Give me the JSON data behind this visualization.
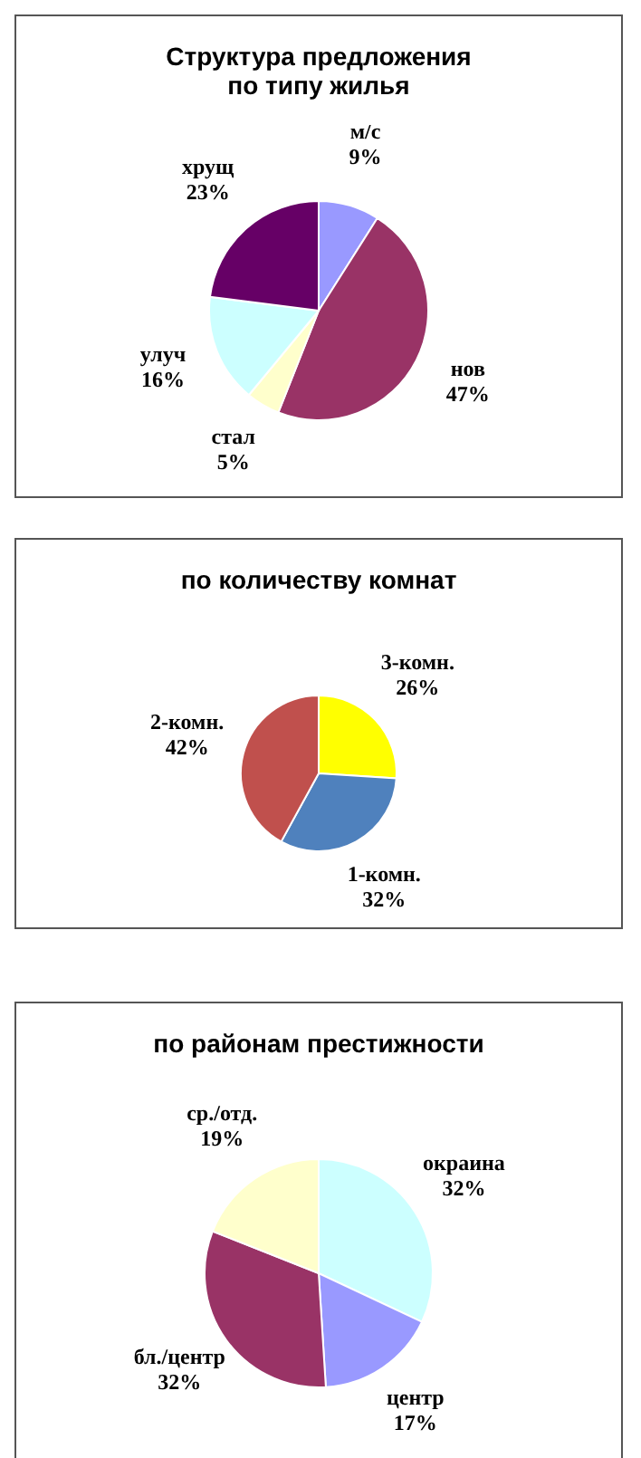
{
  "chart_data": [
    {
      "type": "pie",
      "title": "Структура  предложения\nпо типу жилья",
      "categories": [
        "м/с",
        "нов",
        "стал",
        "улуч",
        "хрущ"
      ],
      "values": [
        9,
        47,
        5,
        16,
        23
      ],
      "value_labels": [
        "9%",
        "47%",
        "5%",
        "16%",
        "23%"
      ],
      "colors": [
        "#9999ff",
        "#993366",
        "#ffffcc",
        "#ccffff",
        "#660066"
      ],
      "legend": false
    },
    {
      "type": "pie",
      "title": "по количеству  комнат",
      "categories": [
        "3-комн.",
        "1-комн.",
        "2-комн."
      ],
      "values": [
        26,
        32,
        42
      ],
      "value_labels": [
        "26%",
        "32%",
        "42%"
      ],
      "colors": [
        "#ffff00",
        "#4f81bd",
        "#c0504d"
      ],
      "legend": false
    },
    {
      "type": "pie",
      "title": "по районам престижности",
      "categories": [
        "окраина",
        "центр",
        "бл./центр",
        "ср./отд."
      ],
      "values": [
        32,
        17,
        32,
        19
      ],
      "value_labels": [
        "32%",
        "17%",
        "32%",
        "19%"
      ],
      "colors": [
        "#ccffff",
        "#9999ff",
        "#993366",
        "#ffffcc"
      ],
      "legend": false
    }
  ]
}
